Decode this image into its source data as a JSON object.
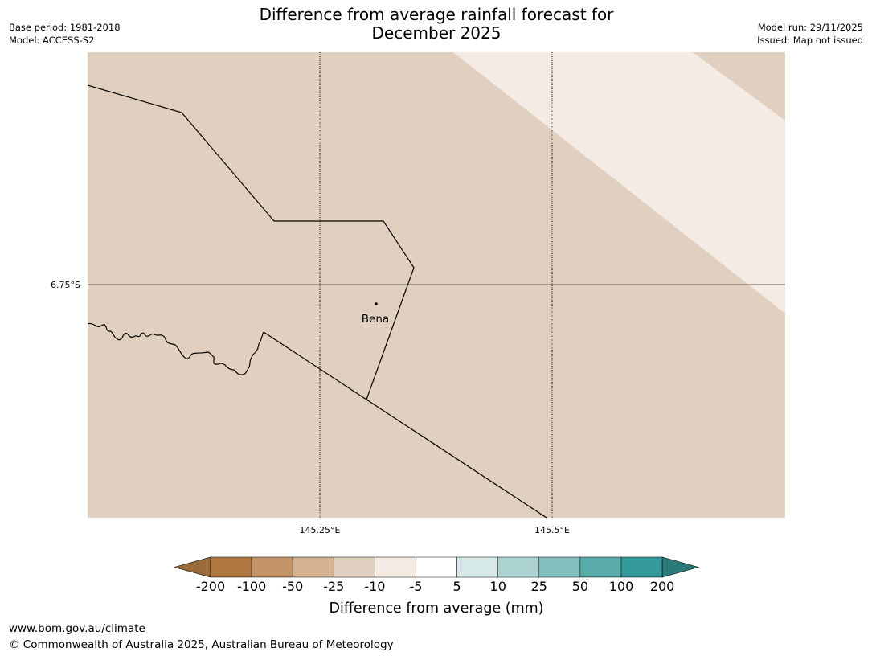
{
  "header": {
    "title_line1": "Difference from average rainfall forecast for",
    "title_line2": "December 2025",
    "base_period": "Base period: 1981-2018",
    "model": "Model: ACCESS-S2",
    "model_run": "Model run: 29/11/2025",
    "issued": "Issued: Map not issued"
  },
  "map": {
    "latitude_labels": [
      "6.75°S"
    ],
    "longitude_labels": [
      "145.25°E",
      "145.5°E"
    ],
    "places": [
      {
        "name": "Bena"
      }
    ],
    "region_colors": {
      "background": "#e1d0bf",
      "lighter_band": "#f3ebe4"
    }
  },
  "colorbar": {
    "title": "Difference from average (mm)",
    "labels": [
      "-200",
      "-100",
      "-50",
      "-25",
      "-10",
      "-5",
      "5",
      "10",
      "25",
      "50",
      "100",
      "200"
    ],
    "under_color": "#9a6a3a",
    "over_color": "#2a7a78",
    "colors": [
      "#b07840",
      "#c39468",
      "#d4b393",
      "#e1d0bf",
      "#f3ebe4",
      "#ffffff",
      "#d6e9e8",
      "#acd3d2",
      "#84c1be",
      "#5aacaa",
      "#33999a"
    ]
  },
  "footer": {
    "url": "www.bom.gov.au/climate",
    "copyright": "© Commonwealth of Australia 2025, Australian Bureau of Meteorology"
  }
}
